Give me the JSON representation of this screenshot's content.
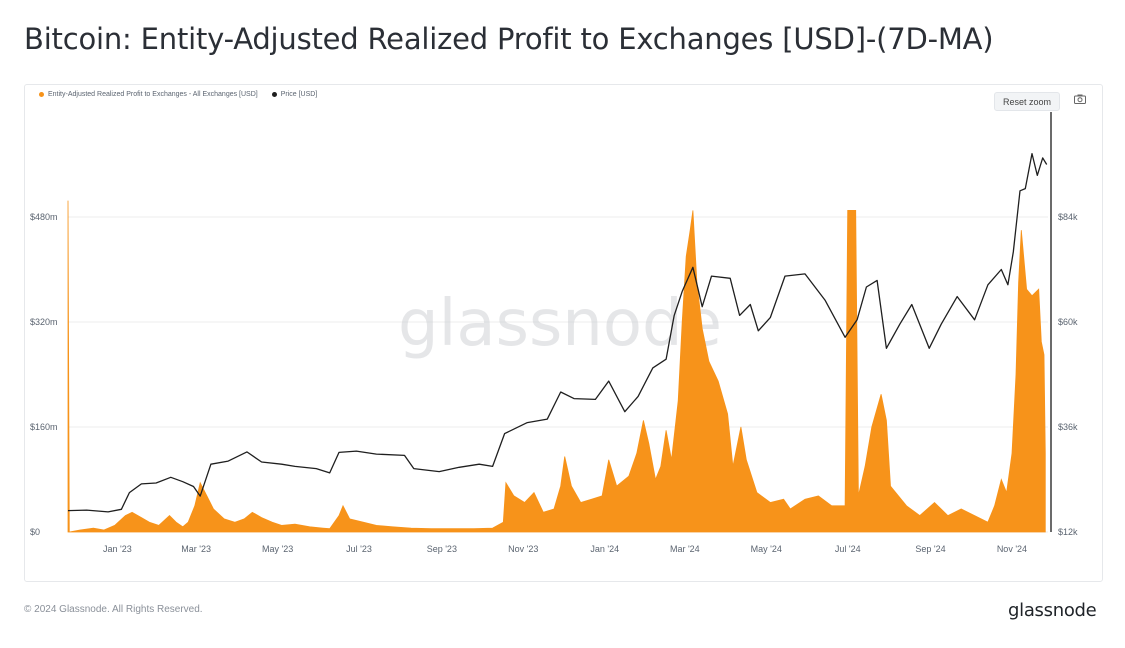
{
  "title": "Bitcoin: Entity-Adjusted Realized Profit to Exchanges [USD]-(7D-MA)",
  "toolbar": {
    "reset_zoom_label": "Reset zoom",
    "camera_icon": "camera-icon"
  },
  "watermark": "glassnode",
  "footer": {
    "copyright": "© 2024 Glassnode. All Rights Reserved.",
    "logo": "glassnode"
  },
  "colors": {
    "profit": "#f7931a",
    "price": "#1f1f1f",
    "grid": "#ececec",
    "axis_text": "#5b6470"
  },
  "chart_data": {
    "type": "area",
    "legend": [
      {
        "label": "Entity-Adjusted Realized Profit to Exchanges - All Exchanges [USD]",
        "color": "#f7931a"
      },
      {
        "label": "Price [USD]",
        "color": "#1f1f1f"
      }
    ],
    "x_ticks": [
      "Jan '23",
      "Mar '23",
      "May '23",
      "Jul '23",
      "Sep '23",
      "Nov '23",
      "Jan '24",
      "Mar '24",
      "May '24",
      "Jul '24",
      "Sep '24",
      "Nov '24"
    ],
    "y_left": {
      "ticks": [
        "$0",
        "$160m",
        "$320m",
        "$480m"
      ],
      "tick_values": [
        0,
        160,
        320,
        480
      ],
      "range": [
        0,
        640
      ],
      "unit": "USD millions"
    },
    "y_right": {
      "ticks": [
        "$12k",
        "$36k",
        "$60k",
        "$84k"
      ],
      "tick_values": [
        12,
        36,
        60,
        84
      ],
      "range": [
        12,
        108
      ],
      "unit": "USD thousands"
    },
    "x_range": [
      "2022-12-01",
      "2024-12-04"
    ],
    "series": [
      {
        "name": "Entity-Adjusted Realized Profit to Exchanges - All Exchanges [USD]",
        "axis": "left",
        "points": [
          [
            "2022-12-01",
            505
          ],
          [
            "2022-12-02",
            0
          ],
          [
            "2022-12-10",
            3
          ],
          [
            "2022-12-20",
            6
          ],
          [
            "2022-12-28",
            3
          ],
          [
            "2023-01-05",
            10
          ],
          [
            "2023-01-13",
            25
          ],
          [
            "2023-01-18",
            30
          ],
          [
            "2023-01-25",
            22
          ],
          [
            "2023-01-31",
            15
          ],
          [
            "2023-02-07",
            10
          ],
          [
            "2023-02-15",
            25
          ],
          [
            "2023-02-20",
            15
          ],
          [
            "2023-02-25",
            8
          ],
          [
            "2023-03-01",
            15
          ],
          [
            "2023-03-06",
            40
          ],
          [
            "2023-03-10",
            75
          ],
          [
            "2023-03-15",
            55
          ],
          [
            "2023-03-20",
            35
          ],
          [
            "2023-03-28",
            20
          ],
          [
            "2023-04-05",
            15
          ],
          [
            "2023-04-12",
            20
          ],
          [
            "2023-04-18",
            30
          ],
          [
            "2023-04-25",
            22
          ],
          [
            "2023-05-03",
            15
          ],
          [
            "2023-05-10",
            10
          ],
          [
            "2023-05-20",
            12
          ],
          [
            "2023-05-31",
            8
          ],
          [
            "2023-06-10",
            6
          ],
          [
            "2023-06-15",
            5
          ],
          [
            "2023-06-22",
            25
          ],
          [
            "2023-06-25",
            40
          ],
          [
            "2023-06-30",
            20
          ],
          [
            "2023-07-10",
            15
          ],
          [
            "2023-07-20",
            10
          ],
          [
            "2023-08-01",
            8
          ],
          [
            "2023-08-15",
            6
          ],
          [
            "2023-08-30",
            5
          ],
          [
            "2023-09-15",
            5
          ],
          [
            "2023-10-01",
            5
          ],
          [
            "2023-10-15",
            6
          ],
          [
            "2023-10-23",
            15
          ],
          [
            "2023-10-25",
            75
          ],
          [
            "2023-10-31",
            55
          ],
          [
            "2023-11-08",
            45
          ],
          [
            "2023-11-15",
            60
          ],
          [
            "2023-11-22",
            30
          ],
          [
            "2023-11-30",
            35
          ],
          [
            "2023-12-05",
            70
          ],
          [
            "2023-12-08",
            115
          ],
          [
            "2023-12-13",
            70
          ],
          [
            "2023-12-20",
            45
          ],
          [
            "2023-12-28",
            50
          ],
          [
            "2024-01-05",
            55
          ],
          [
            "2024-01-10",
            110
          ],
          [
            "2024-01-16",
            70
          ],
          [
            "2024-01-25",
            85
          ],
          [
            "2024-01-31",
            120
          ],
          [
            "2024-02-05",
            170
          ],
          [
            "2024-02-09",
            135
          ],
          [
            "2024-02-14",
            80
          ],
          [
            "2024-02-18",
            100
          ],
          [
            "2024-02-22",
            155
          ],
          [
            "2024-02-26",
            110
          ],
          [
            "2024-03-02",
            200
          ],
          [
            "2024-03-05",
            320
          ],
          [
            "2024-03-08",
            420
          ],
          [
            "2024-03-11",
            460
          ],
          [
            "2024-03-13",
            490
          ],
          [
            "2024-03-16",
            380
          ],
          [
            "2024-03-20",
            310
          ],
          [
            "2024-03-25",
            260
          ],
          [
            "2024-04-01",
            230
          ],
          [
            "2024-04-08",
            180
          ],
          [
            "2024-04-12",
            100
          ],
          [
            "2024-04-18",
            160
          ],
          [
            "2024-04-22",
            110
          ],
          [
            "2024-04-30",
            60
          ],
          [
            "2024-05-10",
            45
          ],
          [
            "2024-05-20",
            50
          ],
          [
            "2024-05-25",
            35
          ],
          [
            "2024-06-05",
            50
          ],
          [
            "2024-06-15",
            55
          ],
          [
            "2024-06-25",
            40
          ],
          [
            "2024-07-05",
            40
          ],
          [
            "2024-07-07",
            490
          ],
          [
            "2024-07-13",
            490
          ],
          [
            "2024-07-15",
            55
          ],
          [
            "2024-07-20",
            100
          ],
          [
            "2024-07-25",
            160
          ],
          [
            "2024-08-01",
            210
          ],
          [
            "2024-08-05",
            170
          ],
          [
            "2024-08-08",
            70
          ],
          [
            "2024-08-20",
            40
          ],
          [
            "2024-08-30",
            25
          ],
          [
            "2024-09-10",
            45
          ],
          [
            "2024-09-20",
            25
          ],
          [
            "2024-09-30",
            35
          ],
          [
            "2024-10-10",
            25
          ],
          [
            "2024-10-20",
            15
          ],
          [
            "2024-10-25",
            40
          ],
          [
            "2024-10-30",
            80
          ],
          [
            "2024-11-03",
            60
          ],
          [
            "2024-11-07",
            120
          ],
          [
            "2024-11-10",
            240
          ],
          [
            "2024-11-12",
            380
          ],
          [
            "2024-11-14",
            460
          ],
          [
            "2024-11-18",
            370
          ],
          [
            "2024-11-22",
            360
          ],
          [
            "2024-11-27",
            370
          ],
          [
            "2024-11-29",
            290
          ],
          [
            "2024-12-01",
            270
          ],
          [
            "2024-12-02",
            120
          ]
        ]
      },
      {
        "name": "Price [USD]",
        "axis": "right",
        "points": [
          [
            "2022-12-01",
            16.9
          ],
          [
            "2022-12-15",
            17.0
          ],
          [
            "2022-12-31",
            16.6
          ],
          [
            "2023-01-10",
            17.2
          ],
          [
            "2023-01-16",
            21.0
          ],
          [
            "2023-01-25",
            23.0
          ],
          [
            "2023-02-05",
            23.2
          ],
          [
            "2023-02-16",
            24.5
          ],
          [
            "2023-02-25",
            23.5
          ],
          [
            "2023-03-05",
            22.4
          ],
          [
            "2023-03-10",
            20.2
          ],
          [
            "2023-03-18",
            27.5
          ],
          [
            "2023-03-31",
            28.2
          ],
          [
            "2023-04-14",
            30.3
          ],
          [
            "2023-04-25",
            28.0
          ],
          [
            "2023-05-10",
            27.5
          ],
          [
            "2023-05-20",
            27.0
          ],
          [
            "2023-06-05",
            26.5
          ],
          [
            "2023-06-15",
            25.5
          ],
          [
            "2023-06-22",
            30.2
          ],
          [
            "2023-07-05",
            30.5
          ],
          [
            "2023-07-20",
            29.8
          ],
          [
            "2023-08-10",
            29.5
          ],
          [
            "2023-08-17",
            26.5
          ],
          [
            "2023-09-05",
            25.8
          ],
          [
            "2023-09-20",
            26.8
          ],
          [
            "2023-10-05",
            27.5
          ],
          [
            "2023-10-15",
            27.0
          ],
          [
            "2023-10-24",
            34.5
          ],
          [
            "2023-11-10",
            37.0
          ],
          [
            "2023-11-25",
            37.8
          ],
          [
            "2023-12-05",
            44.0
          ],
          [
            "2023-12-15",
            42.5
          ],
          [
            "2023-12-31",
            42.3
          ],
          [
            "2024-01-10",
            46.5
          ],
          [
            "2024-01-22",
            39.5
          ],
          [
            "2024-02-01",
            43.0
          ],
          [
            "2024-02-12",
            49.5
          ],
          [
            "2024-02-22",
            51.5
          ],
          [
            "2024-02-28",
            61.5
          ],
          [
            "2024-03-05",
            67.0
          ],
          [
            "2024-03-13",
            72.5
          ],
          [
            "2024-03-20",
            63.5
          ],
          [
            "2024-03-27",
            70.5
          ],
          [
            "2024-04-10",
            70.0
          ],
          [
            "2024-04-17",
            61.5
          ],
          [
            "2024-04-25",
            64.0
          ],
          [
            "2024-05-01",
            58.0
          ],
          [
            "2024-05-10",
            61.0
          ],
          [
            "2024-05-21",
            70.5
          ],
          [
            "2024-06-05",
            71.0
          ],
          [
            "2024-06-20",
            65.0
          ],
          [
            "2024-07-05",
            56.5
          ],
          [
            "2024-07-14",
            60.5
          ],
          [
            "2024-07-21",
            68.0
          ],
          [
            "2024-07-29",
            69.5
          ],
          [
            "2024-08-05",
            54.0
          ],
          [
            "2024-08-15",
            59.5
          ],
          [
            "2024-08-24",
            64.0
          ],
          [
            "2024-09-06",
            54.0
          ],
          [
            "2024-09-15",
            59.5
          ],
          [
            "2024-09-27",
            65.8
          ],
          [
            "2024-10-10",
            60.5
          ],
          [
            "2024-10-20",
            68.5
          ],
          [
            "2024-10-30",
            72.0
          ],
          [
            "2024-11-04",
            68.5
          ],
          [
            "2024-11-08",
            76.0
          ],
          [
            "2024-11-13",
            90.0
          ],
          [
            "2024-11-17",
            90.5
          ],
          [
            "2024-11-22",
            98.5
          ],
          [
            "2024-11-26",
            93.5
          ],
          [
            "2024-11-30",
            97.5
          ],
          [
            "2024-12-03",
            96.0
          ]
        ]
      }
    ],
    "grid": "horizontal",
    "legend_position": "top-left"
  }
}
